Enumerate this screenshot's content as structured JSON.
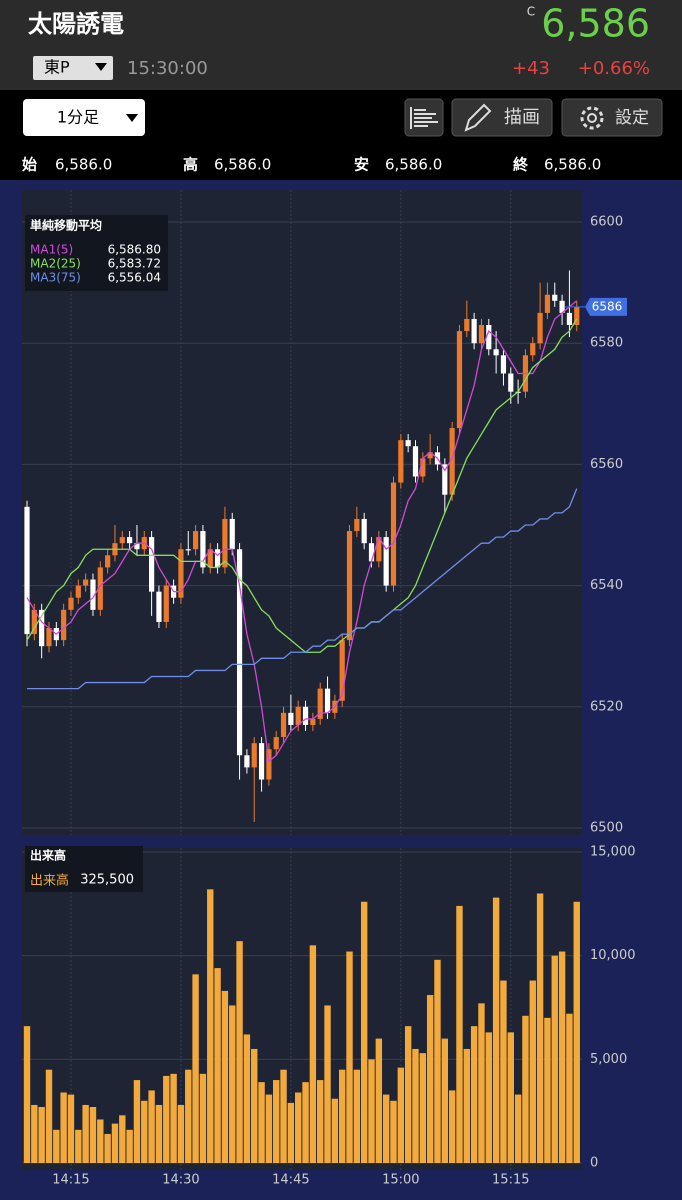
{
  "header": {
    "name": "太陽誘電",
    "close_marker": "C",
    "price": "6,586",
    "market": "東P",
    "time": "15:30:00",
    "change": "+43",
    "change_pct": "+0.66%"
  },
  "toolbar": {
    "interval": "1分足",
    "draw": "描画",
    "settings": "設定"
  },
  "ohlc": [
    {
      "label": "始",
      "value": "6,586.0"
    },
    {
      "label": "高",
      "value": "6,586.0"
    },
    {
      "label": "安",
      "value": "6,586.0"
    },
    {
      "label": "終",
      "value": "6,586.0"
    }
  ],
  "chart_data": [
    {
      "type": "candlestick",
      "title": "単純移動平均",
      "up_color": "#ec7a2c",
      "down_color": "#ffffff",
      "open": [
        6553,
        6532,
        6536,
        6530,
        6533,
        6531,
        6536,
        6538,
        6540,
        6541,
        6536,
        6543,
        6545,
        6547,
        6548,
        6547,
        6546,
        6548,
        6539,
        6534,
        6540,
        6538,
        6546,
        6546,
        6549,
        6543,
        6546,
        6543,
        6551,
        6546,
        6512,
        6510,
        6514,
        6508,
        6513,
        6515,
        6519,
        6517,
        6520,
        6517,
        6518,
        6523,
        6519,
        6521,
        6531,
        6549,
        6551,
        6547,
        6544,
        6548,
        6540,
        6557,
        6564,
        6563,
        6558,
        6561,
        6562,
        6560,
        6555,
        6566,
        6582,
        6584,
        6580,
        6583,
        6579,
        6578,
        6575,
        6572,
        6572,
        6578,
        6580,
        6585,
        6588,
        6587,
        6585,
        6583
      ],
      "high": [
        6554,
        6537,
        6537,
        6534,
        6534,
        6537,
        6539,
        6541,
        6542,
        6542,
        6544,
        6546,
        6550,
        6549,
        6549,
        6550,
        6549,
        6549,
        6540,
        6541,
        6541,
        6547,
        6549,
        6550,
        6550,
        6547,
        6547,
        6553,
        6552,
        6547,
        6513,
        6515,
        6515,
        6514,
        6516,
        6520,
        6522,
        6521,
        6521,
        6519,
        6524,
        6525,
        6522,
        6532,
        6550,
        6553,
        6552,
        6548,
        6549,
        6549,
        6558,
        6565,
        6565,
        6564,
        6562,
        6565,
        6563,
        6561,
        6567,
        6583,
        6587,
        6585,
        6584,
        6584,
        6582,
        6579,
        6576,
        6574,
        6579,
        6581,
        6590,
        6590,
        6590,
        6588,
        6592,
        6587
      ],
      "low": [
        6530,
        6531,
        6528,
        6529,
        6530,
        6530,
        6535,
        6537,
        6539,
        6535,
        6535,
        6542,
        6544,
        6546,
        6546,
        6545,
        6545,
        6535,
        6533,
        6533,
        6537,
        6537,
        6545,
        6545,
        6542,
        6542,
        6542,
        6542,
        6545,
        6508,
        6509,
        6501,
        6506,
        6507,
        6512,
        6514,
        6516,
        6516,
        6516,
        6516,
        6517,
        6518,
        6518,
        6520,
        6530,
        6548,
        6546,
        6543,
        6543,
        6539,
        6539,
        6556,
        6562,
        6557,
        6557,
        6560,
        6559,
        6552,
        6554,
        6565,
        6581,
        6579,
        6579,
        6578,
        6575,
        6573,
        6570,
        6570,
        6571,
        6577,
        6579,
        6584,
        6586,
        6583,
        6581,
        6582
      ],
      "close": [
        6532,
        6536,
        6530,
        6533,
        6531,
        6536,
        6538,
        6540,
        6541,
        6536,
        6543,
        6545,
        6547,
        6548,
        6547,
        6546,
        6548,
        6539,
        6534,
        6540,
        6538,
        6546,
        6546,
        6549,
        6543,
        6546,
        6543,
        6551,
        6546,
        6512,
        6510,
        6514,
        6508,
        6513,
        6515,
        6519,
        6517,
        6520,
        6517,
        6518,
        6523,
        6519,
        6521,
        6531,
        6549,
        6551,
        6547,
        6544,
        6548,
        6540,
        6557,
        6564,
        6563,
        6558,
        6561,
        6562,
        6560,
        6555,
        6566,
        6582,
        6584,
        6580,
        6583,
        6579,
        6578,
        6575,
        6572,
        6572,
        6578,
        6580,
        6585,
        6588,
        6587,
        6585,
        6583,
        6586
      ],
      "series": [
        {
          "name": "MA1(5)",
          "color": "#d04ad8",
          "last_label": "6,586.80",
          "values": [
            6538,
            6536,
            6534,
            6533,
            6532,
            6533,
            6534,
            6536,
            6537,
            6538,
            6540,
            6541,
            6542,
            6544,
            6546,
            6547,
            6547,
            6546,
            6543,
            6541,
            6539,
            6539,
            6541,
            6544,
            6544,
            6546,
            6545,
            6546,
            6546,
            6540,
            6532,
            6527,
            6520,
            6511,
            6512,
            6514,
            6516,
            6517,
            6518,
            6518,
            6519,
            6519,
            6520,
            6522,
            6529,
            6534,
            6540,
            6544,
            6548,
            6546,
            6547,
            6550,
            6554,
            6556,
            6561,
            6562,
            6561,
            6559,
            6561,
            6565,
            6569,
            6573,
            6579,
            6582,
            6581,
            6579,
            6577,
            6575,
            6575,
            6575,
            6577,
            6581,
            6584,
            6585,
            6586,
            6587
          ]
        },
        {
          "name": "MA2(25)",
          "color": "#86e05a",
          "last_label": "6,583.72",
          "values": [
            6531,
            6533,
            6535,
            6537,
            6539,
            6540,
            6542,
            6543,
            6545,
            6546,
            6546,
            6546,
            6546,
            6546,
            6546,
            6545,
            6545,
            6545,
            6545,
            6545,
            6545,
            6544,
            6544,
            6544,
            6544,
            6543,
            6543,
            6544,
            6543,
            6541,
            6540,
            6538,
            6536,
            6535,
            6533,
            6532,
            6531,
            6530,
            6529,
            6529,
            6529,
            6530,
            6530,
            6531,
            6532,
            6533,
            6533,
            6534,
            6534,
            6535,
            6536,
            6537,
            6538,
            6540,
            6543,
            6546,
            6549,
            6552,
            6555,
            6558,
            6561,
            6563,
            6565,
            6567,
            6569,
            6570,
            6571,
            6572,
            6574,
            6576,
            6577,
            6578,
            6579,
            6581,
            6582,
            6584
          ]
        },
        {
          "name": "MA3(75)",
          "color": "#6f8ee8",
          "last_label": "6,556.04",
          "values": [
            6523,
            6523,
            6523,
            6523,
            6523,
            6523,
            6523,
            6523,
            6524,
            6524,
            6524,
            6524,
            6524,
            6524,
            6524,
            6524,
            6524,
            6525,
            6525,
            6525,
            6525,
            6525,
            6525,
            6526,
            6526,
            6526,
            6526,
            6526,
            6527,
            6527,
            6527,
            6527,
            6528,
            6528,
            6528,
            6528,
            6529,
            6529,
            6529,
            6530,
            6530,
            6531,
            6531,
            6532,
            6532,
            6533,
            6533,
            6534,
            6534,
            6535,
            6536,
            6536,
            6537,
            6538,
            6539,
            6540,
            6541,
            6542,
            6543,
            6544,
            6545,
            6546,
            6547,
            6547,
            6548,
            6548,
            6549,
            6549,
            6550,
            6550,
            6551,
            6551,
            6552,
            6552,
            6553,
            6556
          ]
        }
      ],
      "last_price": 6586,
      "ylim": [
        6500,
        6600
      ],
      "yticks": [
        6500,
        6520,
        6540,
        6560,
        6580,
        6600
      ],
      "grid": true
    },
    {
      "type": "bar",
      "title": "出来高",
      "legend_name": "出来高",
      "legend_value": "325,500",
      "color": "#f2aa3c",
      "categories": [
        null,
        null,
        null,
        null,
        null,
        null,
        "14:15",
        null,
        null,
        null,
        null,
        null,
        null,
        null,
        null,
        null,
        null,
        null,
        null,
        null,
        null,
        "14:30",
        null,
        null,
        null,
        null,
        null,
        null,
        null,
        null,
        null,
        null,
        null,
        null,
        null,
        null,
        "14:45",
        null,
        null,
        null,
        null,
        null,
        null,
        null,
        null,
        null,
        null,
        null,
        null,
        null,
        null,
        "15:00",
        null,
        null,
        null,
        null,
        null,
        null,
        null,
        null,
        null,
        null,
        null,
        null,
        null,
        null,
        "15:15",
        null,
        null,
        null,
        null,
        null,
        null,
        null,
        null,
        null
      ],
      "values": [
        6600,
        2800,
        2700,
        4500,
        1600,
        3400,
        3300,
        1600,
        2800,
        2700,
        2100,
        1400,
        1900,
        2300,
        1600,
        4000,
        3000,
        3500,
        2800,
        4200,
        4300,
        2800,
        4500,
        9100,
        4300,
        13200,
        9400,
        8300,
        7600,
        10700,
        6200,
        5500,
        3900,
        3300,
        4000,
        4500,
        2900,
        3400,
        3900,
        10500,
        4000,
        7600,
        3100,
        4500,
        10200,
        4500,
        12600,
        5000,
        6000,
        3300,
        3000,
        4600,
        6600,
        5500,
        5300,
        8100,
        9800,
        6000,
        3500,
        12400,
        5500,
        6600,
        7700,
        6300,
        12800,
        8800,
        6300,
        3300,
        7100,
        8800,
        13000,
        7000,
        10000,
        10200,
        7200,
        12600
      ],
      "ylim": [
        0,
        15000
      ],
      "yticks": [
        0,
        {
          "value": 5000,
          "label": "5,000"
        },
        {
          "value": 10000,
          "label": "10,000"
        },
        {
          "value": 15000,
          "label": "15,000"
        }
      ],
      "grid": true
    }
  ]
}
